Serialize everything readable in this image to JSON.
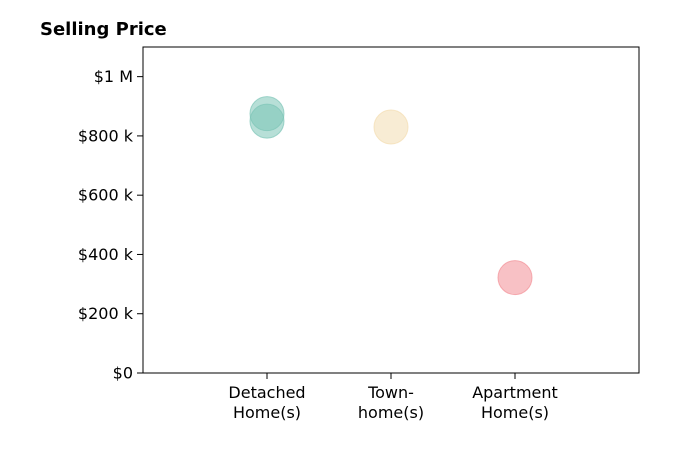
{
  "chart_data": {
    "type": "scatter",
    "title": "Selling Price",
    "xlabel": "",
    "ylabel": "",
    "categories": [
      [
        "Detached",
        "Home(s)"
      ],
      [
        "Town-",
        "home(s)"
      ],
      [
        "Apartment",
        "Home(s)"
      ]
    ],
    "points": [
      {
        "category_index": 0,
        "value": 875000,
        "color": "#7cc4b6"
      },
      {
        "category_index": 0,
        "value": 850000,
        "color": "#7cc4b6"
      },
      {
        "category_index": 1,
        "value": 830000,
        "color": "#f3ddb0"
      },
      {
        "category_index": 2,
        "value": 322000,
        "color": "#f28e95"
      }
    ],
    "ylim": [
      0,
      1100000
    ],
    "yticks": [
      {
        "value": 0,
        "label": "$0"
      },
      {
        "value": 200000,
        "label": "$200 k"
      },
      {
        "value": 400000,
        "label": "$400 k"
      },
      {
        "value": 600000,
        "label": "$600 k"
      },
      {
        "value": 800000,
        "label": "$800 k"
      },
      {
        "value": 1000000,
        "label": "$1 M"
      }
    ],
    "grid": false,
    "legend": "none"
  }
}
